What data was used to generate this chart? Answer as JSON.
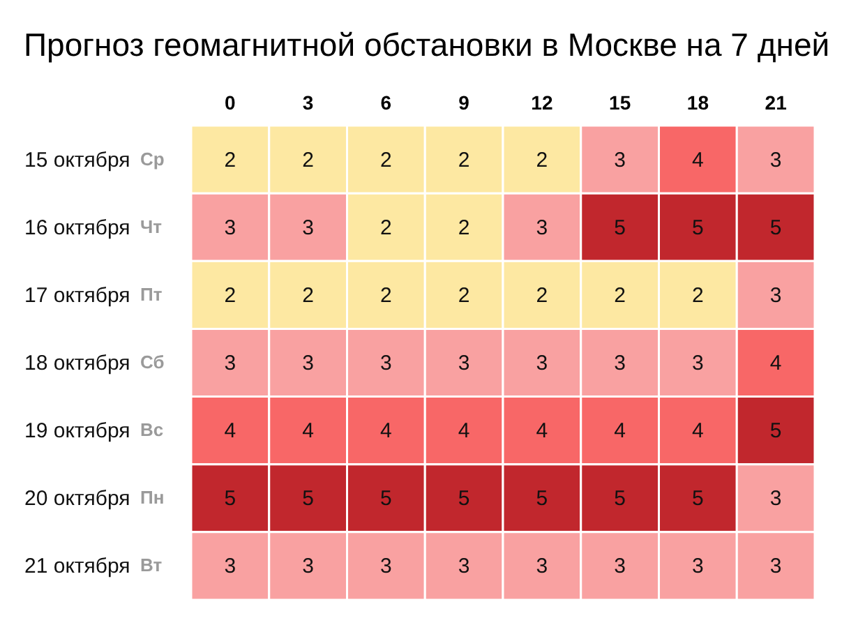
{
  "chart_data": {
    "type": "heatmap",
    "title": "Прогноз геомагнитной обстановки в Москве на 7 дней",
    "categories": [
      "0",
      "3",
      "6",
      "9",
      "12",
      "15",
      "18",
      "21"
    ],
    "y_categories": [
      "15 октября",
      "16 октября",
      "17 октября",
      "18 октября",
      "19 октября",
      "20 октября",
      "21 октября"
    ],
    "y2_categories": [
      "Ср",
      "Чт",
      "Пт",
      "Сб",
      "Вс",
      "Пн",
      "Вт"
    ],
    "cells": [
      [
        2,
        2,
        2,
        2,
        2,
        3,
        4,
        3
      ],
      [
        3,
        3,
        2,
        2,
        3,
        5,
        5,
        5
      ],
      [
        2,
        2,
        2,
        2,
        2,
        2,
        2,
        3
      ],
      [
        3,
        3,
        3,
        3,
        3,
        3,
        3,
        4
      ],
      [
        4,
        4,
        4,
        4,
        4,
        4,
        4,
        5
      ],
      [
        5,
        5,
        5,
        5,
        5,
        5,
        5,
        3
      ],
      [
        3,
        3,
        3,
        3,
        3,
        3,
        3,
        3
      ]
    ],
    "colors": [
      [
        "#fde8a2",
        "#fde8a2",
        "#fde8a2",
        "#fde8a2",
        "#fde8a2",
        "#f9a1a1",
        "#f86767",
        "#f9a1a1"
      ],
      [
        "#f9a1a1",
        "#f9a1a1",
        "#fde8a2",
        "#fde8a2",
        "#f9a1a1",
        "#c1272d",
        "#c1272d",
        "#c1272d"
      ],
      [
        "#fde8a2",
        "#fde8a2",
        "#fde8a2",
        "#fde8a2",
        "#fde8a2",
        "#fde8a2",
        "#fde8a2",
        "#f9a1a1"
      ],
      [
        "#f9a1a1",
        "#f9a1a1",
        "#f9a1a1",
        "#f9a1a1",
        "#f9a1a1",
        "#f9a1a1",
        "#f9a1a1",
        "#f86767"
      ],
      [
        "#f86767",
        "#f86767",
        "#f86767",
        "#f86767",
        "#f86767",
        "#f86767",
        "#f86767",
        "#c1272d"
      ],
      [
        "#c1272d",
        "#c1272d",
        "#c1272d",
        "#c1272d",
        "#c1272d",
        "#c1272d",
        "#c1272d",
        "#f9a1a1"
      ],
      [
        "#f9a1a1",
        "#f9a1a1",
        "#f9a1a1",
        "#f9a1a1",
        "#f9a1a1",
        "#f9a1a1",
        "#f9a1a1",
        "#f9a1a1"
      ]
    ],
    "data_labels": true
  }
}
